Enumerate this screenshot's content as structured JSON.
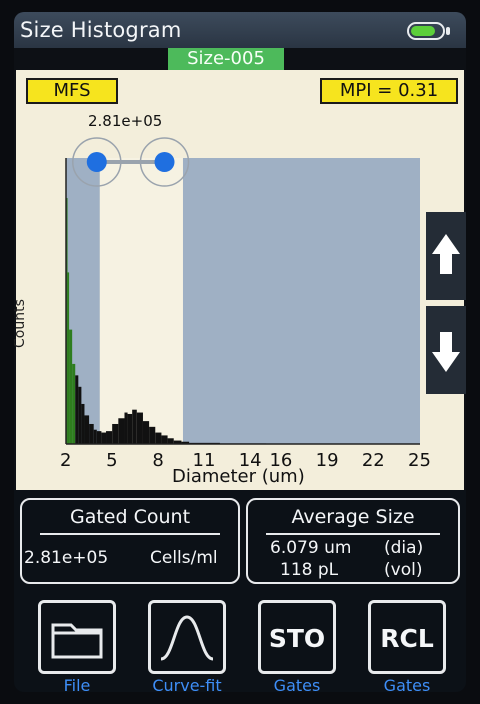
{
  "header": {
    "title": "Size Histogram",
    "battery_icon": "battery-icon",
    "sample_tag": "Size-005"
  },
  "histogram": {
    "mode_label": "MFS",
    "mpi_label": "MPI = 0.31",
    "gate_value": "2.81e+05",
    "xlabel": "Diameter (um)",
    "ylabel": "Counts",
    "x_ticks": [
      "2",
      "5",
      "8",
      "11",
      "14",
      "16",
      "19",
      "22",
      "25"
    ]
  },
  "chart_data": {
    "type": "area",
    "xlabel": "Diameter (um)",
    "ylabel": "Counts",
    "xlim": [
      2,
      25
    ],
    "x_ticks": [
      2,
      5,
      8,
      11,
      14,
      16,
      19,
      22,
      25
    ],
    "gate": {
      "from": 4.2,
      "to": 9.6,
      "count_label": "2.81e+05"
    },
    "peak_color": "#2e7d1e",
    "series": [
      {
        "x": [
          2.0,
          2.1,
          2.2,
          2.4,
          2.6,
          2.8,
          3.0,
          3.2,
          3.5,
          3.8,
          4.0,
          4.3,
          4.6,
          5.0,
          5.4,
          5.8,
          6.0,
          6.3,
          6.6,
          7.0,
          7.4,
          7.8,
          8.2,
          8.6,
          9.0,
          9.5,
          10.0,
          12.0,
          15.0,
          20.0,
          25.0
        ],
        "y": [
          0.86,
          0.6,
          0.4,
          0.28,
          0.24,
          0.2,
          0.14,
          0.1,
          0.07,
          0.05,
          0.045,
          0.04,
          0.045,
          0.07,
          0.09,
          0.11,
          0.105,
          0.12,
          0.11,
          0.08,
          0.06,
          0.04,
          0.03,
          0.02,
          0.012,
          0.008,
          0.004,
          0.002,
          0.001,
          0.0,
          0.0
        ]
      }
    ]
  },
  "side": {
    "up_icon": "up-arrow-icon",
    "down_icon": "down-arrow-icon"
  },
  "gated": {
    "title": "Gated Count",
    "value": "2.81e+05",
    "unit": "Cells/ml"
  },
  "average": {
    "title": "Average Size",
    "dia_value": "6.079 um",
    "dia_tag": "(dia)",
    "vol_value": "118 pL",
    "vol_tag": "(vol)"
  },
  "toolbar": [
    {
      "icon": "folder-icon",
      "label": "File"
    },
    {
      "icon": "curve-icon",
      "label": "Curve-fit"
    },
    {
      "icon_text": "STO",
      "label": "Gates"
    },
    {
      "icon_text": "RCL",
      "label": "Gates"
    }
  ]
}
